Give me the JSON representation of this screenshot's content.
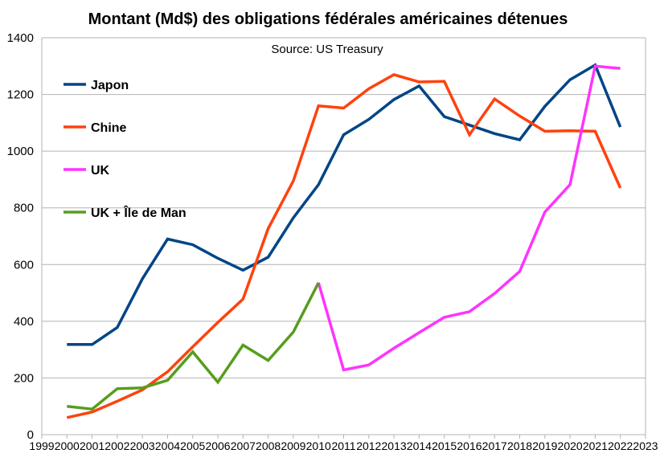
{
  "chart_data": {
    "type": "line",
    "title": "Montant (Md$) des obligations fédérales américaines détenues",
    "subtitle": "Source: US Treasury",
    "x_ticks": [
      "1999",
      "2000",
      "2001",
      "2002",
      "2003",
      "2004",
      "2005",
      "2006",
      "2007",
      "2008",
      "2009",
      "2010",
      "2011",
      "2012",
      "2013",
      "2014",
      "2015",
      "2016",
      "2017",
      "2018",
      "2019",
      "2020",
      "2021",
      "2022",
      "2023"
    ],
    "y_ticks": [
      "0",
      "200",
      "400",
      "600",
      "800",
      "1000",
      "1200",
      "1400"
    ],
    "xlim": [
      1999,
      2023
    ],
    "ylim": [
      0,
      1400
    ],
    "grid": true,
    "legend_position": "top-left",
    "series": [
      {
        "name": "Japon",
        "color": "#004586",
        "x": [
          2000,
          2001,
          2002,
          2003,
          2004,
          2005,
          2006,
          2007,
          2008,
          2009,
          2010,
          2011,
          2012,
          2013,
          2014,
          2015,
          2016,
          2017,
          2018,
          2019,
          2020,
          2021,
          2022
        ],
        "values": [
          318,
          318,
          378,
          550,
          690,
          670,
          622,
          580,
          626,
          765,
          882,
          1058,
          1112,
          1182,
          1230,
          1122,
          1092,
          1062,
          1040,
          1158,
          1252,
          1304,
          1085
        ]
      },
      {
        "name": "Chine",
        "color": "#ff420e",
        "x": [
          2000,
          2001,
          2002,
          2003,
          2004,
          2005,
          2006,
          2007,
          2008,
          2009,
          2010,
          2011,
          2012,
          2013,
          2014,
          2015,
          2016,
          2017,
          2018,
          2019,
          2020,
          2021,
          2022
        ],
        "values": [
          60,
          80,
          118,
          158,
          222,
          310,
          396,
          478,
          727,
          895,
          1160,
          1152,
          1220,
          1270,
          1244,
          1246,
          1058,
          1184,
          1124,
          1070,
          1072,
          1070,
          870
        ]
      },
      {
        "name": "UK",
        "color": "#ff33ff",
        "x": [
          2010,
          2011,
          2012,
          2013,
          2014,
          2015,
          2016,
          2017,
          2018,
          2019,
          2020,
          2021,
          2022
        ],
        "values": [
          536,
          228,
          246,
          305,
          360,
          414,
          434,
          498,
          576,
          785,
          882,
          1300,
          1292
        ]
      },
      {
        "name": "UK + Île de Man",
        "color": "#579d1c",
        "x": [
          2000,
          2001,
          2002,
          2003,
          2004,
          2005,
          2006,
          2007,
          2008,
          2009,
          2010
        ],
        "values": [
          100,
          90,
          162,
          165,
          192,
          292,
          185,
          316,
          262,
          362,
          536
        ]
      }
    ]
  }
}
